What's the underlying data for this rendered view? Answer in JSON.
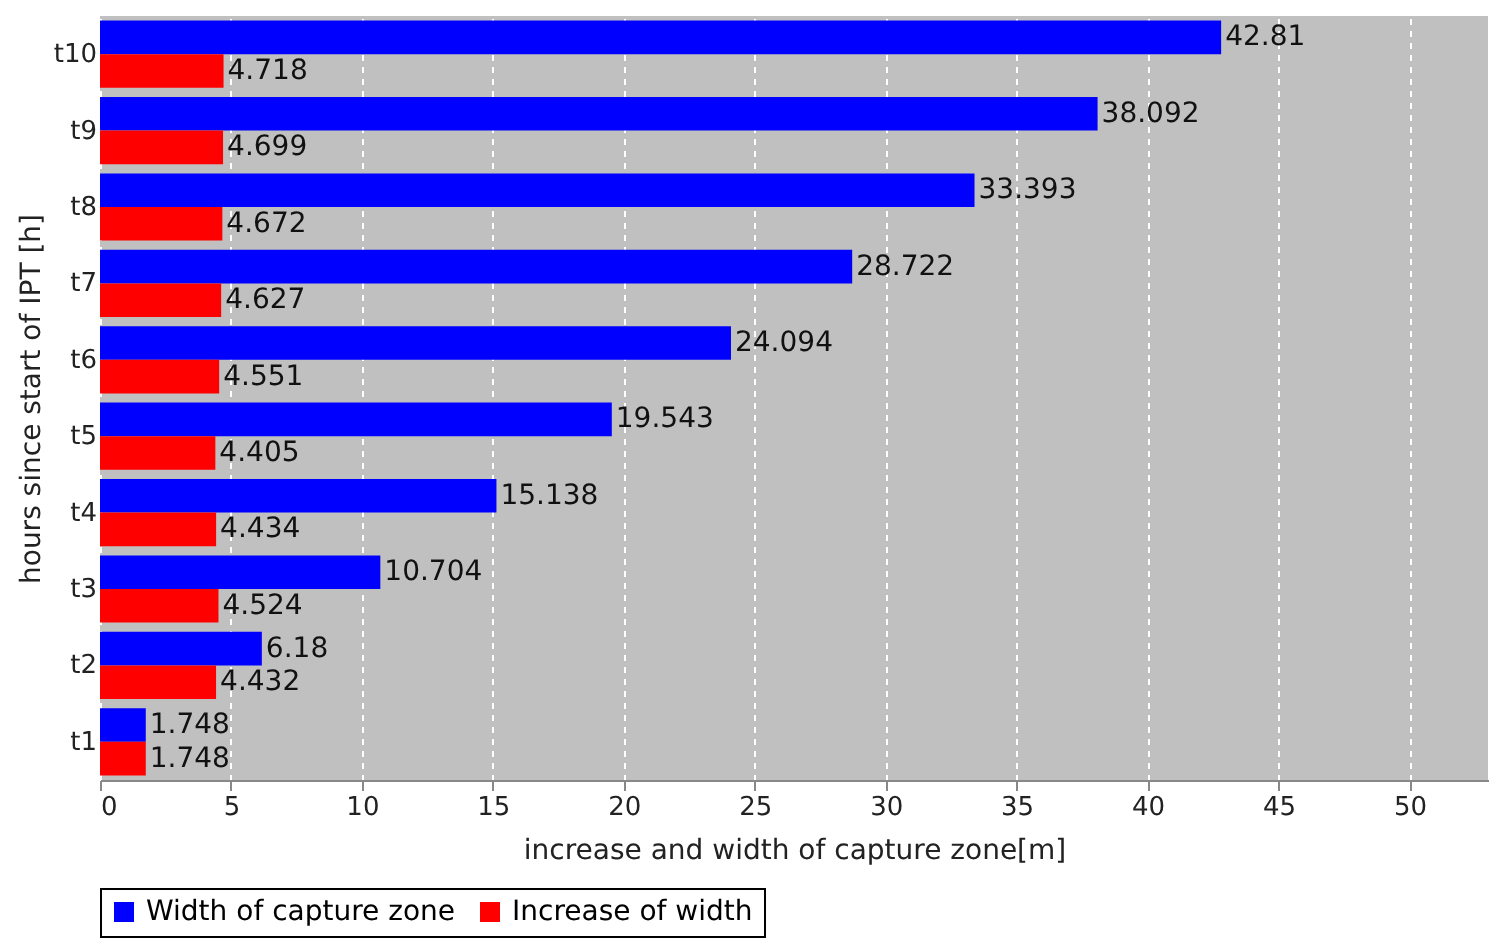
{
  "chart_data": {
    "type": "bar",
    "orientation": "horizontal",
    "xlabel": "increase and width of capture zone[m]",
    "ylabel": "hours since start of IPT [h]",
    "categories": [
      "t10",
      "t9",
      "t8",
      "t7",
      "t6",
      "t5",
      "t4",
      "t3",
      "t2",
      "t1"
    ],
    "series": [
      {
        "name": "Width of capture zone",
        "color": "#0000ff",
        "values": [
          42.81,
          38.092,
          33.393,
          28.722,
          24.094,
          19.543,
          15.138,
          10.704,
          6.18,
          1.748
        ]
      },
      {
        "name": "Increase of width",
        "color": "#ff0000",
        "values": [
          4.718,
          4.699,
          4.672,
          4.627,
          4.551,
          4.405,
          4.434,
          4.524,
          4.432,
          1.748
        ]
      }
    ],
    "xlim": [
      0,
      53
    ],
    "xticks": [
      0,
      5,
      10,
      15,
      20,
      25,
      30,
      35,
      40,
      45,
      50
    ],
    "grid": "x",
    "legend": "bottom",
    "data_labels": true
  }
}
